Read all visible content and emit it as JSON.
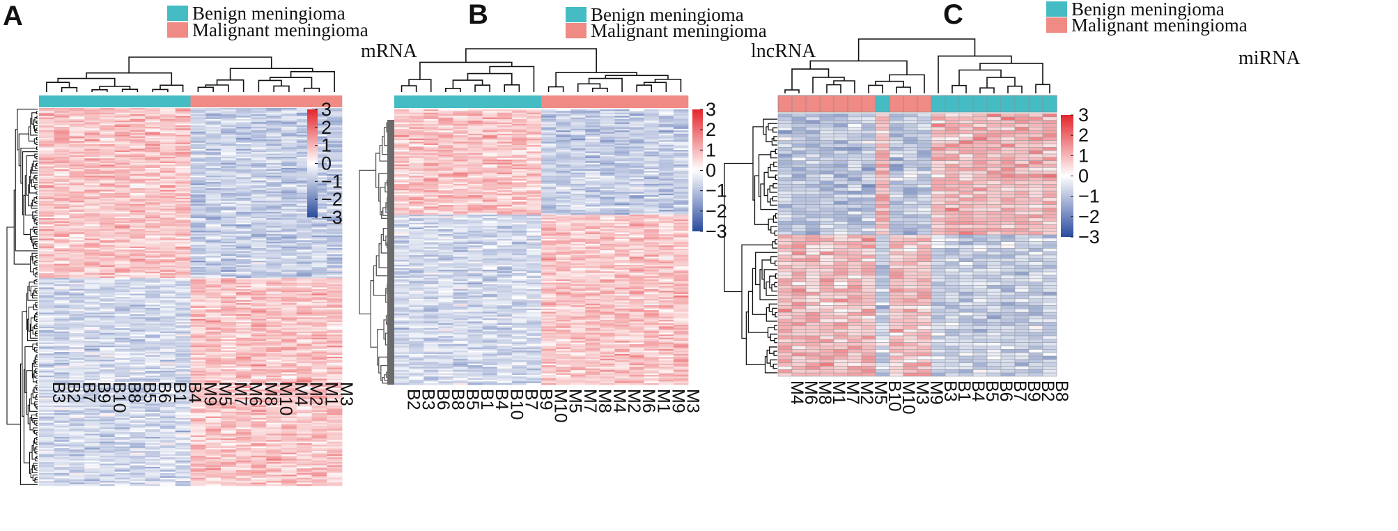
{
  "legend": {
    "benign_label": "Benign meningioma",
    "malignant_label": "Malignant meningioma",
    "benign_color": "#45bcc4",
    "malignant_color": "#ef8a84"
  },
  "colorscale": {
    "low": "#2a4a9e",
    "mid": "#ffffff",
    "high": "#e3262c",
    "min": -3,
    "max": 3
  },
  "chart_data": [
    {
      "type": "heatmap",
      "panel": "A",
      "title": "mRNA",
      "samples": [
        "B3",
        "B2",
        "B7",
        "B9",
        "B10",
        "B8",
        "B5",
        "B6",
        "B1",
        "B4",
        "M9",
        "M5",
        "M7",
        "M6",
        "M8",
        "M10",
        "M4",
        "M2",
        "M1",
        "M3"
      ],
      "groups": [
        "B",
        "B",
        "B",
        "B",
        "B",
        "B",
        "B",
        "B",
        "B",
        "B",
        "M",
        "M",
        "M",
        "M",
        "M",
        "M",
        "M",
        "M",
        "M",
        "M"
      ],
      "colorbar_ticks": [
        3,
        2,
        1,
        0,
        -1,
        -2,
        -3
      ],
      "colorbar_labels": [
        "3",
        "2",
        "1",
        "0",
        "−1",
        "−2",
        "−3"
      ],
      "row_split_fraction": 0.45
    },
    {
      "type": "heatmap",
      "panel": "B",
      "title": "lncRNA",
      "samples": [
        "B2",
        "B3",
        "B6",
        "B8",
        "B5",
        "B1",
        "B4",
        "B10",
        "B7",
        "B9",
        "M10",
        "M5",
        "M7",
        "M8",
        "M4",
        "M2",
        "M6",
        "M1",
        "M9",
        "M3"
      ],
      "groups": [
        "B",
        "B",
        "B",
        "B",
        "B",
        "B",
        "B",
        "B",
        "B",
        "B",
        "M",
        "M",
        "M",
        "M",
        "M",
        "M",
        "M",
        "M",
        "M",
        "M"
      ],
      "colorbar_ticks": [
        3,
        2,
        1,
        0,
        -1,
        -2,
        -3
      ],
      "colorbar_labels": [
        "3",
        "2",
        "1",
        "0",
        "−1",
        "−2",
        "−3"
      ],
      "row_split_fraction": 0.38
    },
    {
      "type": "heatmap",
      "panel": "C",
      "title": "miRNA",
      "samples": [
        "M4",
        "M6",
        "M8",
        "M1",
        "M7",
        "M2",
        "M5",
        "B10",
        "M10",
        "M3",
        "M9",
        "B3",
        "B1",
        "B4",
        "B5",
        "B6",
        "B7",
        "B9",
        "B2",
        "B8"
      ],
      "groups": [
        "M",
        "M",
        "M",
        "M",
        "M",
        "M",
        "M",
        "B",
        "M",
        "M",
        "M",
        "B",
        "B",
        "B",
        "B",
        "B",
        "B",
        "B",
        "B",
        "B"
      ],
      "colorbar_ticks": [
        3,
        2,
        1,
        0,
        -1,
        -2,
        -3
      ],
      "colorbar_labels": [
        "3",
        "2",
        "1",
        "0",
        "−1",
        "−2",
        "−3"
      ],
      "row_split_fraction": 0.46
    }
  ]
}
